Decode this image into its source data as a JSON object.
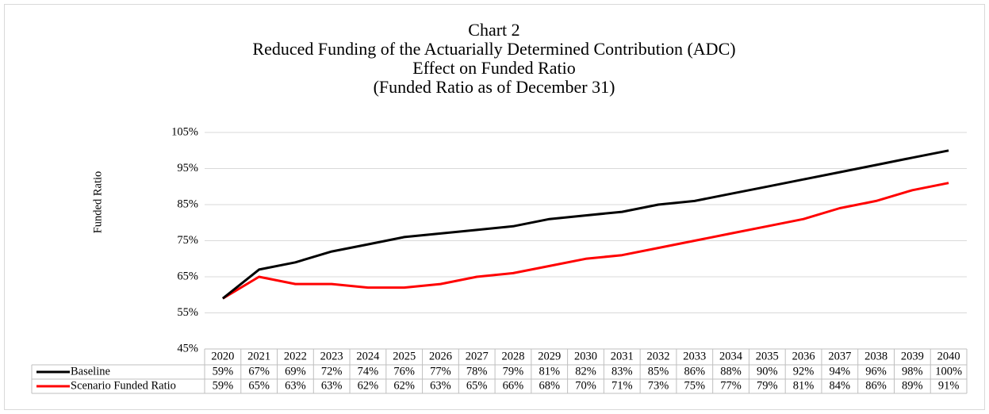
{
  "chart_data": {
    "type": "line",
    "title": [
      "Chart 2",
      "Reduced Funding of the Actuarially Determined Contribution (ADC)",
      "Effect on Funded Ratio",
      "(Funded Ratio as of December 31)"
    ],
    "y_label": "Funded Ratio",
    "categories": [
      "2020",
      "2021",
      "2022",
      "2023",
      "2024",
      "2025",
      "2026",
      "2027",
      "2028",
      "2029",
      "2030",
      "2031",
      "2032",
      "2033",
      "2034",
      "2035",
      "2036",
      "2037",
      "2038",
      "2039",
      "2040"
    ],
    "series": [
      {
        "name": "Baseline",
        "color": "#000000",
        "values": [
          59,
          67,
          69,
          72,
          74,
          76,
          77,
          78,
          79,
          81,
          82,
          83,
          85,
          86,
          88,
          90,
          92,
          94,
          96,
          98,
          100
        ],
        "value_labels": [
          "59%",
          "67%",
          "69%",
          "72%",
          "74%",
          "76%",
          "77%",
          "78%",
          "79%",
          "81%",
          "82%",
          "83%",
          "85%",
          "86%",
          "88%",
          "90%",
          "92%",
          "94%",
          "96%",
          "98%",
          "100%"
        ]
      },
      {
        "name": "Scenario Funded Ratio",
        "color": "#ff0000",
        "values": [
          59,
          65,
          63,
          63,
          62,
          62,
          63,
          65,
          66,
          68,
          70,
          71,
          73,
          75,
          77,
          79,
          81,
          84,
          86,
          89,
          91
        ],
        "value_labels": [
          "59%",
          "65%",
          "63%",
          "63%",
          "62%",
          "62%",
          "63%",
          "65%",
          "66%",
          "68%",
          "70%",
          "71%",
          "73%",
          "75%",
          "77%",
          "79%",
          "81%",
          "84%",
          "86%",
          "89%",
          "91%"
        ]
      }
    ],
    "ylim": [
      45,
      105
    ],
    "yticks": [
      {
        "value": 45,
        "label": "45%"
      },
      {
        "value": 55,
        "label": "55%"
      },
      {
        "value": 65,
        "label": "65%"
      },
      {
        "value": 75,
        "label": "75%"
      },
      {
        "value": 85,
        "label": "85%"
      },
      {
        "value": 95,
        "label": "95%"
      },
      {
        "value": 105,
        "label": "105%"
      }
    ],
    "grid": true
  }
}
